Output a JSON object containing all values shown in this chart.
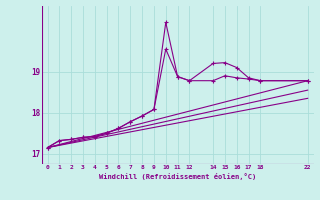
{
  "xlabel": "Windchill (Refroidissement éolien,°C)",
  "bg_color": "#cdf0ec",
  "grid_color": "#aaddda",
  "line_color": "#880088",
  "xlim": [
    -0.5,
    22.5
  ],
  "ylim": [
    16.75,
    20.6
  ],
  "xticks": [
    0,
    1,
    2,
    3,
    4,
    5,
    6,
    7,
    8,
    9,
    10,
    11,
    12,
    14,
    15,
    16,
    17,
    18,
    22
  ],
  "xtick_labels": [
    "0",
    "1",
    "2",
    "3",
    "4",
    "5",
    "6",
    "7",
    "8",
    "9",
    "10",
    "11",
    "12",
    "14",
    "15",
    "16",
    "17",
    "18",
    "22"
  ],
  "yticks": [
    17,
    18,
    19
  ],
  "series1_x": [
    0,
    1,
    2,
    3,
    4,
    5,
    6,
    7,
    8,
    9,
    10,
    11,
    12,
    14,
    15,
    16,
    17,
    18,
    22
  ],
  "series1_y": [
    17.15,
    17.32,
    17.35,
    17.4,
    17.42,
    17.5,
    17.62,
    17.78,
    17.92,
    18.08,
    20.2,
    18.88,
    18.78,
    19.2,
    19.22,
    19.1,
    18.85,
    18.78,
    18.78
  ],
  "series2_x": [
    0,
    1,
    2,
    3,
    4,
    5,
    6,
    7,
    8,
    9,
    10,
    11,
    12,
    14,
    15,
    16,
    17,
    18,
    22
  ],
  "series2_y": [
    17.15,
    17.32,
    17.35,
    17.4,
    17.42,
    17.5,
    17.62,
    17.78,
    17.92,
    18.08,
    19.55,
    18.88,
    18.78,
    18.78,
    18.9,
    18.85,
    18.82,
    18.78,
    18.78
  ],
  "line1_x": [
    0,
    22
  ],
  "line1_y": [
    17.15,
    18.78
  ],
  "line2_x": [
    0,
    22
  ],
  "line2_y": [
    17.15,
    18.55
  ],
  "line3_x": [
    0,
    22
  ],
  "line3_y": [
    17.15,
    18.35
  ]
}
